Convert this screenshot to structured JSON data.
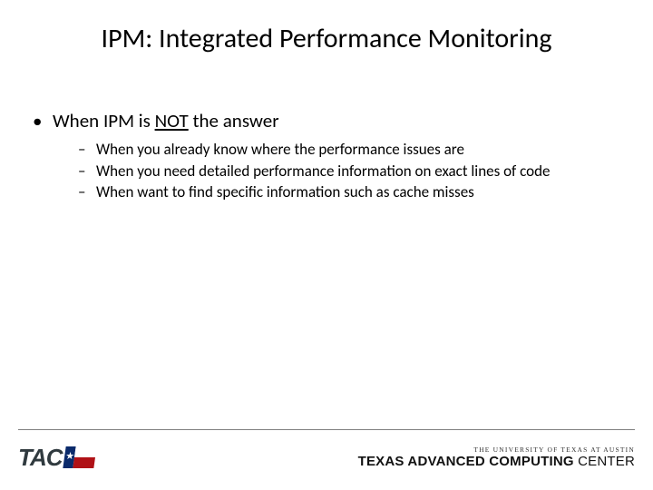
{
  "title": "IPM: Integrated Performance Monitoring",
  "bullet1_pre": "When IPM is ",
  "bullet1_not": "NOT",
  "bullet1_post": " the answer",
  "sub": [
    "When you already know where the performance issues are",
    "When you need detailed performance information on exact lines of code",
    "When want to find specific information such as cache misses"
  ],
  "footer": {
    "tacc_short": "TAC",
    "univ_line": "THE UNIVERSITY OF TEXAS AT AUSTIN",
    "tacc_full_bold": "TEXAS ADVANCED COMPUTING",
    "tacc_full_light": " CENTER",
    "star_glyph": "★"
  },
  "colors": {
    "text": "#000000",
    "rule": "#7f7f7f",
    "flag_blue": "#0a2a6b",
    "flag_red": "#b01116",
    "logo_gray": "#303a3f"
  }
}
